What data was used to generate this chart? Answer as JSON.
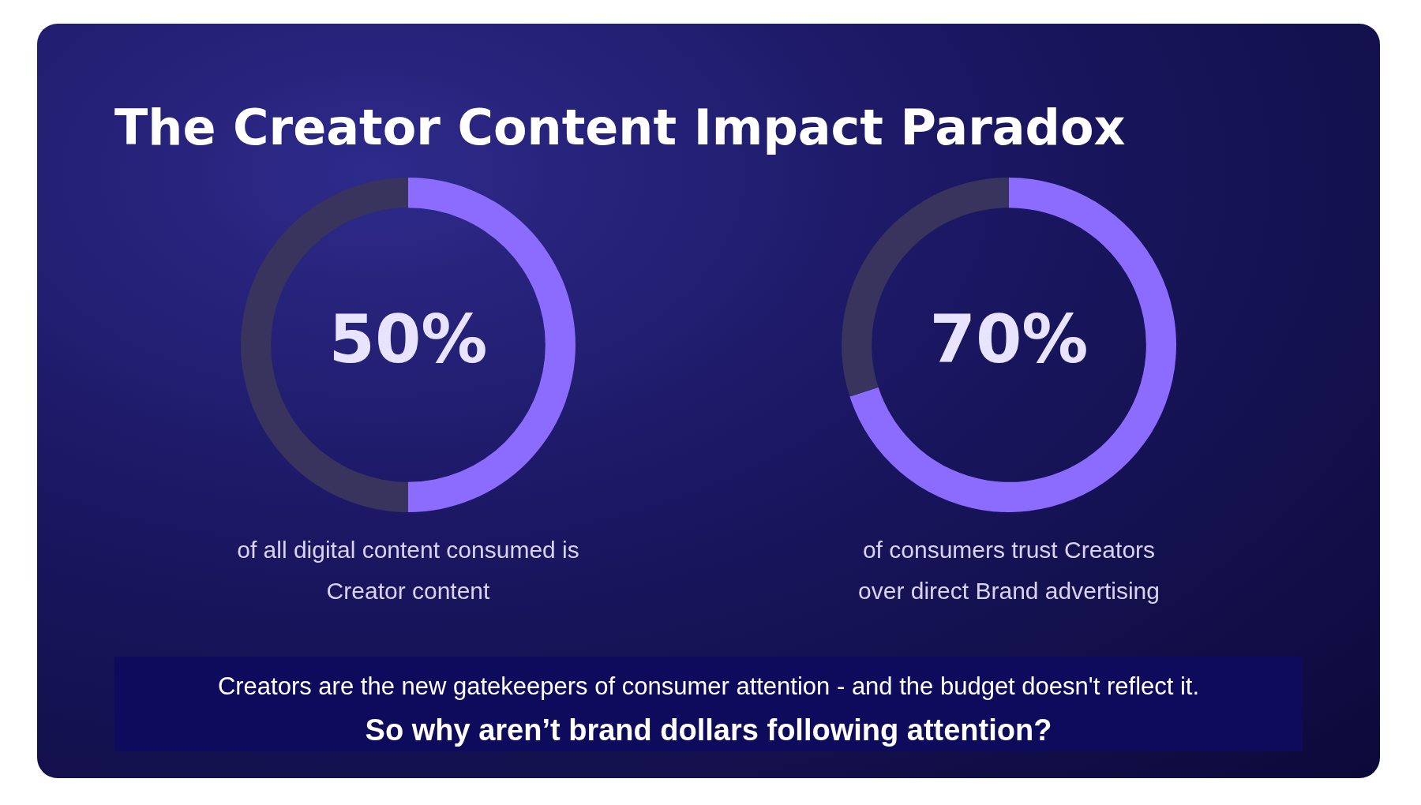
{
  "chart_data": [
    {
      "type": "donut",
      "title": "The Creator Content Impact Paradox",
      "categories": [
        null,
        null
      ],
      "values": [
        50,
        50
      ],
      "colors": [
        "#8b6cff",
        "#38345e"
      ],
      "value_labels": [
        "50%",
        null
      ],
      "annotations": [
        "of all digital content consumed is",
        "Creator content"
      ]
    },
    {
      "type": "donut",
      "categories": [
        null,
        null
      ],
      "values": [
        70,
        30
      ],
      "colors": [
        "#8b6cff",
        "#38345e"
      ],
      "value_labels": [
        "70%",
        null
      ],
      "annotations": [
        "of consumers trust Creators",
        "over direct Brand advertising"
      ]
    },
    {
      "type": "other",
      "annotations": [
        "Creators are the new gatekeepers of consumer attention - and the budget doesn't reflect it.",
        "So why aren’t brand dollars following attention?"
      ]
    }
  ]
}
